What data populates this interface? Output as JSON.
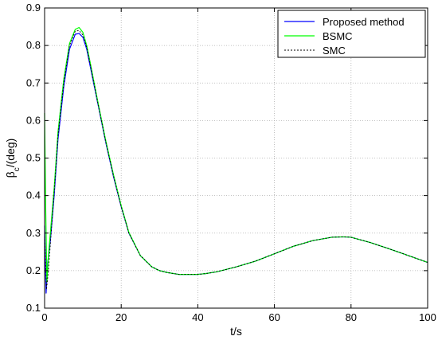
{
  "chart_data": {
    "type": "line",
    "title": "",
    "xlabel": "t/s",
    "ylabel_main": "β",
    "ylabel_sub": "c",
    "ylabel_rest": "/(deg)",
    "xlim": [
      0,
      100
    ],
    "ylim": [
      0.1,
      0.9
    ],
    "xticks": [
      0,
      20,
      40,
      60,
      80,
      100
    ],
    "yticks": [
      0.1,
      0.2,
      0.3,
      0.4,
      0.5,
      0.6,
      0.7,
      0.8,
      0.9
    ],
    "grid": true,
    "legend_position": "top-right",
    "series": [
      {
        "name": "Proposed method",
        "color": "#0000ff",
        "dash": "solid",
        "x": [
          0,
          0.4,
          0.8,
          1.5,
          2.5,
          3.5,
          5,
          6.5,
          8,
          9,
          10,
          11,
          12,
          14,
          16,
          18,
          20,
          22,
          25,
          28,
          30,
          32,
          35,
          38,
          40,
          42,
          45,
          50,
          55,
          60,
          65,
          70,
          75,
          78,
          80,
          85,
          90,
          95,
          100
        ],
        "y": [
          0.32,
          0.14,
          0.22,
          0.28,
          0.4,
          0.55,
          0.69,
          0.79,
          0.83,
          0.832,
          0.822,
          0.79,
          0.74,
          0.64,
          0.54,
          0.45,
          0.37,
          0.3,
          0.24,
          0.21,
          0.2,
          0.195,
          0.19,
          0.19,
          0.19,
          0.192,
          0.197,
          0.21,
          0.225,
          0.245,
          0.265,
          0.28,
          0.289,
          0.29,
          0.289,
          0.275,
          0.258,
          0.24,
          0.222
        ]
      },
      {
        "name": "BSMC",
        "color": "#00ff00",
        "dash": "solid",
        "x": [
          0,
          0.3,
          0.6,
          1,
          1.5,
          2.5,
          3.5,
          5,
          6.5,
          8,
          9,
          10,
          11,
          12,
          14,
          16,
          18,
          20,
          22,
          25,
          28,
          30,
          32,
          35,
          38,
          40,
          42,
          45,
          50,
          55,
          60,
          65,
          70,
          75,
          78,
          80,
          85,
          90,
          95,
          100
        ],
        "y": [
          0.62,
          0.36,
          0.17,
          0.24,
          0.3,
          0.42,
          0.57,
          0.71,
          0.805,
          0.843,
          0.848,
          0.835,
          0.8,
          0.75,
          0.645,
          0.545,
          0.455,
          0.373,
          0.302,
          0.24,
          0.21,
          0.2,
          0.195,
          0.19,
          0.19,
          0.19,
          0.192,
          0.197,
          0.21,
          0.225,
          0.245,
          0.265,
          0.28,
          0.289,
          0.29,
          0.289,
          0.275,
          0.258,
          0.24,
          0.222
        ]
      },
      {
        "name": "SMC",
        "color": "#000000",
        "dash": "dotted",
        "x": [
          0,
          0.5,
          1,
          1.5,
          2.5,
          3.5,
          5,
          6.5,
          8,
          9,
          10,
          11,
          12,
          14,
          16,
          18,
          20,
          22,
          25,
          28,
          30,
          32,
          35,
          38,
          40,
          42,
          45,
          50,
          55,
          60,
          65,
          70,
          75,
          78,
          80,
          85,
          90,
          95,
          100
        ],
        "y": [
          0.3,
          0.15,
          0.2,
          0.27,
          0.41,
          0.56,
          0.7,
          0.8,
          0.838,
          0.84,
          0.828,
          0.795,
          0.745,
          0.642,
          0.542,
          0.452,
          0.371,
          0.3,
          0.24,
          0.21,
          0.2,
          0.195,
          0.19,
          0.19,
          0.19,
          0.192,
          0.197,
          0.21,
          0.225,
          0.245,
          0.265,
          0.28,
          0.289,
          0.29,
          0.289,
          0.275,
          0.258,
          0.24,
          0.222
        ]
      }
    ]
  }
}
